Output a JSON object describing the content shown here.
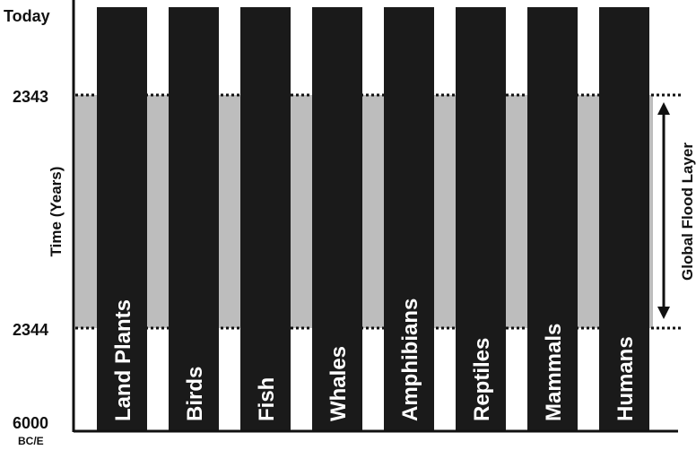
{
  "axis": {
    "title": "Time (Years)",
    "ticks": [
      "Today",
      "2343",
      "2344",
      "6000"
    ],
    "bottom_suffix": "BC/E"
  },
  "flood": {
    "label": "Global Flood Layer",
    "color": "#bdbdbd"
  },
  "columns": [
    "Land Plants",
    "Birds",
    "Fish",
    "Whales",
    "Amphibians",
    "Reptiles",
    "Mammals",
    "Humans"
  ],
  "colors": {
    "column": "#1a1a1a",
    "axis": "#111111"
  }
}
